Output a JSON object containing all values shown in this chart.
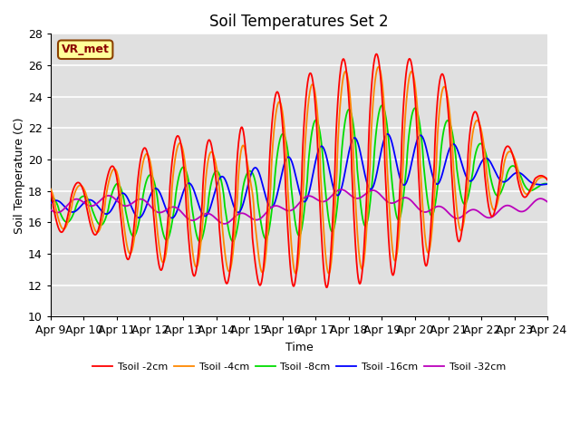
{
  "title": "Soil Temperatures Set 2",
  "xlabel": "Time",
  "ylabel": "Soil Temperature (C)",
  "ylim": [
    10,
    28
  ],
  "bg_color": "#e0e0e0",
  "annotation_text": "VR_met",
  "annotation_text_color": "#8B0000",
  "annotation_bg": "#ffff99",
  "annotation_border": "#8B4000",
  "xtick_labels": [
    "Apr 9",
    "Apr 10",
    "Apr 11",
    "Apr 12",
    "Apr 13",
    "Apr 14",
    "Apr 15",
    "Apr 16",
    "Apr 17",
    "Apr 18",
    "Apr 19",
    "Apr 20",
    "Apr 21",
    "Apr 22",
    "Apr 23",
    "Apr 24"
  ],
  "colors": {
    "Tsoil -2cm": "#ff0000",
    "Tsoil -4cm": "#ff8800",
    "Tsoil -8cm": "#00dd00",
    "Tsoil -16cm": "#0000ff",
    "Tsoil -32cm": "#bb00bb"
  },
  "lw": 1.3
}
